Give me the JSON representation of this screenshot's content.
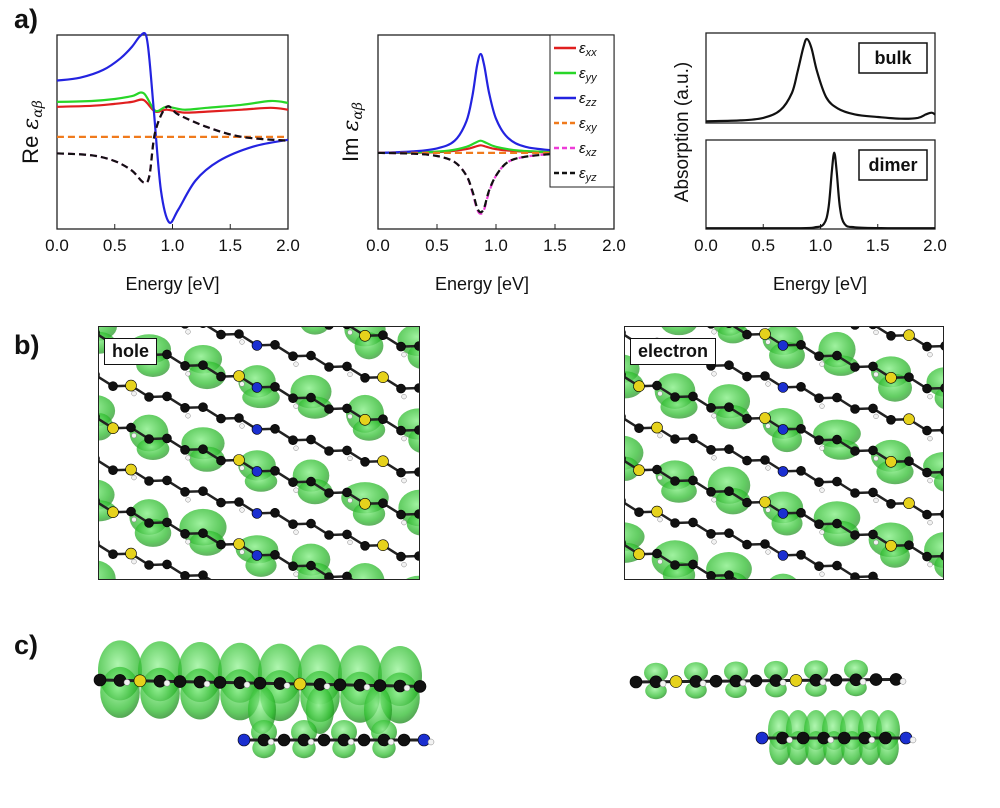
{
  "figure": {
    "panel_labels": [
      "a)",
      "b)",
      "c)"
    ]
  },
  "chart_data": [
    {
      "type": "line",
      "ylabel_prefix": "Re",
      "xlabel": "Energy [eV]",
      "xlim": [
        0.0,
        2.0
      ],
      "xticks": [
        "0.0",
        "0.5",
        "1.0",
        "1.5",
        "2.0"
      ],
      "ylim": [
        -1.0,
        1.0
      ],
      "series": [
        {
          "name": "xx",
          "color": "#e01f1f",
          "dash": "solid",
          "x": [
            0,
            0.3,
            0.5,
            0.65,
            0.75,
            0.85,
            0.95,
            1.1,
            1.3,
            1.6,
            1.85,
            2.0
          ],
          "y": [
            0.26,
            0.27,
            0.29,
            0.31,
            0.33,
            0.21,
            0.23,
            0.2,
            0.21,
            0.23,
            0.25,
            0.23
          ]
        },
        {
          "name": "yy",
          "color": "#28d628",
          "dash": "solid",
          "x": [
            0,
            0.3,
            0.5,
            0.65,
            0.75,
            0.85,
            0.95,
            1.1,
            1.3,
            1.6,
            1.85,
            2.0
          ],
          "y": [
            0.31,
            0.32,
            0.34,
            0.37,
            0.4,
            0.22,
            0.26,
            0.23,
            0.25,
            0.28,
            0.32,
            0.3
          ]
        },
        {
          "name": "zz",
          "color": "#2323e0",
          "dash": "solid",
          "x": [
            0,
            0.2,
            0.4,
            0.55,
            0.65,
            0.72,
            0.77,
            0.8,
            0.84,
            0.9,
            0.97,
            1.05,
            1.2,
            1.4,
            1.7,
            2.0
          ],
          "y": [
            0.53,
            0.56,
            0.64,
            0.76,
            0.88,
            0.99,
            1.0,
            0.75,
            0.2,
            -0.6,
            -0.93,
            -0.8,
            -0.5,
            -0.3,
            -0.15,
            -0.08
          ]
        },
        {
          "name": "xy",
          "color": "#f07a1c",
          "dash": "dash",
          "x": [
            0,
            2.0
          ],
          "y": [
            -0.05,
            -0.05
          ]
        },
        {
          "name": "xz",
          "color": "#ee3cd8",
          "dash": "dash",
          "x": [
            0,
            0.3,
            0.5,
            0.65,
            0.75,
            0.8,
            0.85,
            0.95,
            1.05,
            1.3,
            1.6,
            2.0
          ],
          "y": [
            -0.22,
            -0.24,
            -0.3,
            -0.4,
            -0.52,
            -0.45,
            0.0,
            0.26,
            0.18,
            0.05,
            -0.05,
            -0.09
          ]
        },
        {
          "name": "yz",
          "color": "#111111",
          "dash": "dash",
          "x": [
            0,
            0.3,
            0.5,
            0.65,
            0.75,
            0.8,
            0.85,
            0.95,
            1.05,
            1.3,
            1.6,
            2.0
          ],
          "y": [
            -0.22,
            -0.24,
            -0.3,
            -0.4,
            -0.52,
            -0.45,
            0.0,
            0.26,
            0.18,
            0.05,
            -0.05,
            -0.09
          ]
        }
      ]
    },
    {
      "type": "line",
      "ylabel_prefix": "Im",
      "xlabel": "Energy [eV]",
      "xlim": [
        0.0,
        2.0
      ],
      "xticks": [
        "0.0",
        "0.5",
        "1.0",
        "1.5",
        "2.0"
      ],
      "ylim": [
        -1.0,
        1.55
      ],
      "legend": {
        "position": "top-right",
        "symbol": "ε"
      },
      "series": [
        {
          "name": "xx",
          "color": "#e01f1f",
          "dash": "solid",
          "x": [
            0,
            0.4,
            0.6,
            0.75,
            0.82,
            0.87,
            0.92,
            1.0,
            1.2,
            1.5
          ],
          "y": [
            0,
            0.005,
            0.02,
            0.05,
            0.08,
            0.1,
            0.08,
            0.05,
            0.02,
            0.005
          ]
        },
        {
          "name": "yy",
          "color": "#28d628",
          "dash": "solid",
          "x": [
            0,
            0.4,
            0.6,
            0.75,
            0.82,
            0.87,
            0.92,
            1.0,
            1.2,
            1.5
          ],
          "y": [
            0,
            0.01,
            0.03,
            0.08,
            0.13,
            0.16,
            0.13,
            0.08,
            0.03,
            0.01
          ]
        },
        {
          "name": "zz",
          "color": "#2323e0",
          "dash": "solid",
          "x": [
            0,
            0.3,
            0.5,
            0.65,
            0.75,
            0.8,
            0.84,
            0.87,
            0.9,
            0.94,
            1.0,
            1.1,
            1.25,
            1.5
          ],
          "y": [
            0.0,
            0.02,
            0.06,
            0.16,
            0.42,
            0.75,
            1.15,
            1.3,
            1.15,
            0.8,
            0.45,
            0.2,
            0.08,
            0.03
          ]
        },
        {
          "name": "xy",
          "color": "#f07a1c",
          "dash": "dash",
          "x": [
            0,
            1.5
          ],
          "y": [
            0,
            0
          ]
        },
        {
          "name": "xz",
          "color": "#ee3cd8",
          "dash": "dash",
          "x": [
            0,
            0.3,
            0.5,
            0.65,
            0.75,
            0.8,
            0.84,
            0.87,
            0.9,
            0.94,
            1.0,
            1.1,
            1.25,
            1.5
          ],
          "y": [
            0.0,
            -0.01,
            -0.04,
            -0.12,
            -0.3,
            -0.52,
            -0.74,
            -0.8,
            -0.74,
            -0.52,
            -0.3,
            -0.12,
            -0.05,
            -0.01
          ]
        },
        {
          "name": "yz",
          "color": "#111111",
          "dash": "dash",
          "x": [
            0,
            0.3,
            0.5,
            0.65,
            0.75,
            0.8,
            0.84,
            0.87,
            0.9,
            0.94,
            1.0,
            1.1,
            1.25,
            1.5
          ],
          "y": [
            0.0,
            -0.01,
            -0.04,
            -0.12,
            -0.3,
            -0.5,
            -0.72,
            -0.78,
            -0.72,
            -0.5,
            -0.3,
            -0.12,
            -0.05,
            -0.01
          ]
        }
      ]
    },
    {
      "type": "line",
      "ylabel": "Absorption (a.u.)",
      "xlabel": "Energy [eV]",
      "xlim": [
        0.0,
        2.0
      ],
      "xticks": [
        "0.0",
        "0.5",
        "1.0",
        "1.5",
        "2.0"
      ],
      "subplots": [
        {
          "label": "bulk",
          "ylim": [
            0,
            1.05
          ],
          "x": [
            0,
            0.3,
            0.5,
            0.65,
            0.75,
            0.8,
            0.85,
            0.88,
            0.92,
            0.97,
            1.05,
            1.15,
            1.3,
            1.5,
            1.7,
            1.85,
            1.92,
            1.97,
            2.0
          ],
          "y": [
            0.02,
            0.03,
            0.06,
            0.15,
            0.35,
            0.6,
            0.88,
            0.98,
            0.88,
            0.6,
            0.3,
            0.17,
            0.1,
            0.07,
            0.05,
            0.06,
            0.1,
            0.12,
            0.1
          ]
        },
        {
          "label": "dimer",
          "ylim": [
            0,
            1.05
          ],
          "x": [
            0,
            0.8,
            0.95,
            1.03,
            1.07,
            1.1,
            1.12,
            1.14,
            1.17,
            1.21,
            1.3,
            1.6,
            2.0
          ],
          "y": [
            0.01,
            0.01,
            0.02,
            0.06,
            0.25,
            0.7,
            0.9,
            0.7,
            0.25,
            0.06,
            0.02,
            0.01,
            0.01
          ]
        }
      ]
    }
  ],
  "panel_b": {
    "hole_label": "hole",
    "electron_label": "electron"
  },
  "colors": {
    "isosurface": "#2fbd2f",
    "carbon": "#111111",
    "nitrogen": "#1b2fd0",
    "sulfur": "#e6d21c",
    "hydrogen": "#f2f2f2"
  }
}
